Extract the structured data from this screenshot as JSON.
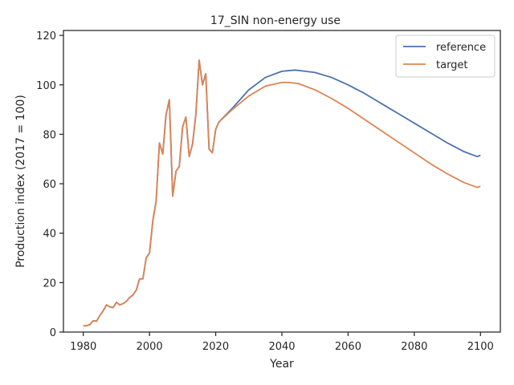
{
  "chart_data": {
    "type": "line",
    "title": "17_SIN non-energy use",
    "xlabel": "Year",
    "ylabel": "Production index (2017 = 100)",
    "xlim": [
      1974,
      2106
    ],
    "ylim": [
      0,
      122
    ],
    "xticks": [
      1980,
      2000,
      2020,
      2040,
      2060,
      2080,
      2100
    ],
    "yticks": [
      0,
      20,
      40,
      60,
      80,
      100,
      120
    ],
    "grid": false,
    "legend_position": "top-right",
    "colors": {
      "reference": "#4c72b0",
      "target": "#dd8452",
      "axis": "#262626"
    },
    "history": {
      "x": [
        1980,
        1981,
        1982,
        1983,
        1984,
        1985,
        1986,
        1987,
        1988,
        1989,
        1990,
        1991,
        1992,
        1993,
        1994,
        1995,
        1996,
        1997,
        1998,
        1999,
        2000,
        2001,
        2002,
        2003,
        2004,
        2005,
        2006,
        2007,
        2008,
        2009,
        2010,
        2011,
        2012,
        2013,
        2014,
        2015,
        2016,
        2017,
        2018,
        2019,
        2020,
        2021
      ],
      "y": [
        2.5,
        2.6,
        3,
        4.6,
        4.4,
        6.7,
        8.6,
        11,
        10.2,
        9.9,
        12,
        11,
        11.5,
        12.4,
        14,
        15,
        17,
        21.5,
        21.5,
        30,
        32,
        45,
        53,
        76.5,
        72,
        88,
        94,
        55,
        65,
        67,
        83,
        87,
        71,
        76,
        88,
        110,
        100,
        104.5,
        74,
        72.5,
        82,
        85
      ]
    },
    "series": [
      {
        "name": "reference",
        "x": [
          2021,
          2025,
          2030,
          2035,
          2040,
          2044,
          2050,
          2055,
          2060,
          2065,
          2070,
          2075,
          2080,
          2085,
          2090,
          2095,
          2099,
          2100
        ],
        "y": [
          85,
          90.5,
          98,
          103,
          105.5,
          106,
          105,
          103,
          100,
          96.5,
          92.5,
          88.5,
          84.5,
          80.5,
          76.5,
          73,
          71,
          71.5
        ]
      },
      {
        "name": "target",
        "x": [
          2021,
          2025,
          2030,
          2035,
          2040,
          2042,
          2045,
          2050,
          2055,
          2060,
          2065,
          2070,
          2075,
          2080,
          2085,
          2090,
          2095,
          2099,
          2100
        ],
        "y": [
          85,
          90,
          95.5,
          99.5,
          101,
          101,
          100.5,
          98,
          94.5,
          90.5,
          86,
          81.5,
          77,
          72.5,
          68,
          64,
          60.5,
          58.5,
          59
        ]
      }
    ]
  }
}
